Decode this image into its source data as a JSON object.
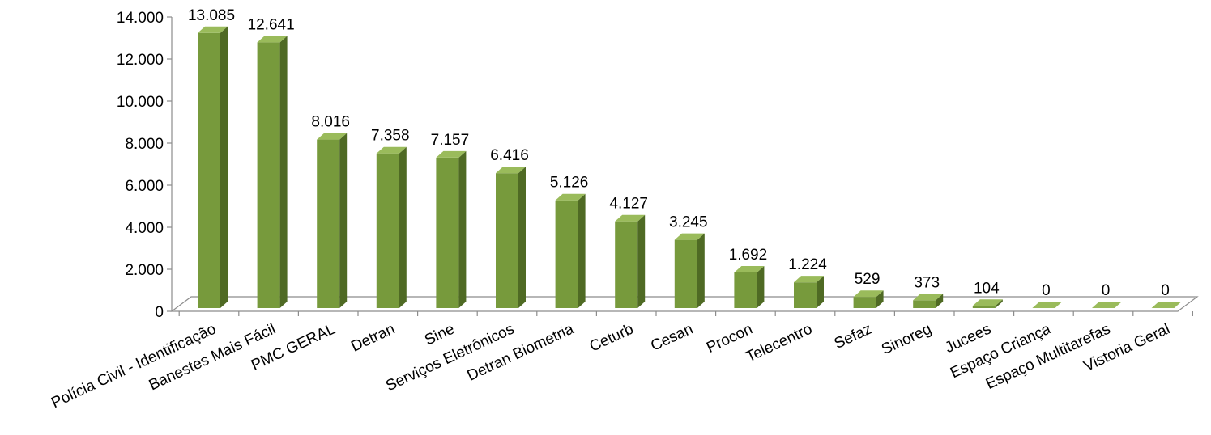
{
  "chart_data": {
    "type": "bar",
    "style": "3d-column",
    "categories": [
      "Polícia Civil - Identificação",
      "Banestes Mais Fácil",
      "PMC GERAL",
      "Detran",
      "Sine",
      "Serviços Eletrônicos",
      "Detran Biometria",
      "Ceturb",
      "Cesan",
      "Procon",
      "Telecentro",
      "Sefaz",
      "Sinoreg",
      "Jucees",
      "Espaço Criança",
      "Espaço Multitarefas",
      "Vistoria Geral"
    ],
    "values": [
      13085,
      12641,
      8016,
      7358,
      7157,
      6416,
      5126,
      4127,
      3245,
      1692,
      1224,
      529,
      373,
      104,
      0,
      0,
      0
    ],
    "data_labels": [
      "13.085",
      "12.641",
      "8.016",
      "7.358",
      "7.157",
      "6.416",
      "5.126",
      "4.127",
      "3.245",
      "1.692",
      "1.224",
      "529",
      "373",
      "104",
      "0",
      "0",
      "0"
    ],
    "y_ticks": [
      0,
      2000,
      4000,
      6000,
      8000,
      10000,
      12000,
      14000
    ],
    "y_tick_labels": [
      "0",
      "2.000",
      "4.000",
      "6.000",
      "8.000",
      "10.000",
      "12.000",
      "14.000"
    ],
    "ylim": [
      0,
      14000
    ],
    "title": "",
    "xlabel": "",
    "ylabel": "",
    "grid": false,
    "legend": "none",
    "colors": {
      "bar_front": "#779a3c",
      "bar_side": "#4f6a24",
      "bar_top": "#9abb5b",
      "floor": "#ffffff",
      "axis": "#8c8c8c"
    }
  }
}
